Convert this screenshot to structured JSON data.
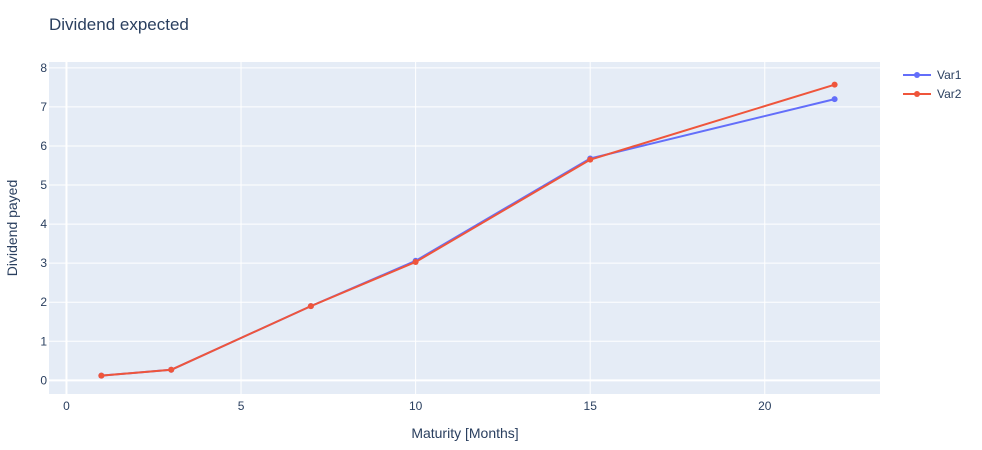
{
  "chart_data": {
    "type": "line",
    "title": "Dividend expected",
    "xlabel": "Maturity [Months]",
    "ylabel": "Dividend payed",
    "xlim": [
      -0.5,
      23.3
    ],
    "ylim": [
      -0.35,
      8.15
    ],
    "x_ticks": [
      0,
      5,
      10,
      15,
      20
    ],
    "y_ticks": [
      0,
      1,
      2,
      3,
      4,
      5,
      6,
      7,
      8
    ],
    "grid": true,
    "legend_position": "top-right",
    "x": [
      1,
      3,
      7,
      10,
      15,
      22
    ],
    "series": [
      {
        "name": "Var1",
        "color": "#636efa",
        "values": [
          0.12,
          0.27,
          1.9,
          3.06,
          5.68,
          7.2
        ]
      },
      {
        "name": "Var2",
        "color": "#ef553b",
        "values": [
          0.12,
          0.27,
          1.9,
          3.03,
          5.65,
          7.57
        ]
      }
    ],
    "plot_bg": "#e5ecf6",
    "grid_color": "#ffffff"
  }
}
